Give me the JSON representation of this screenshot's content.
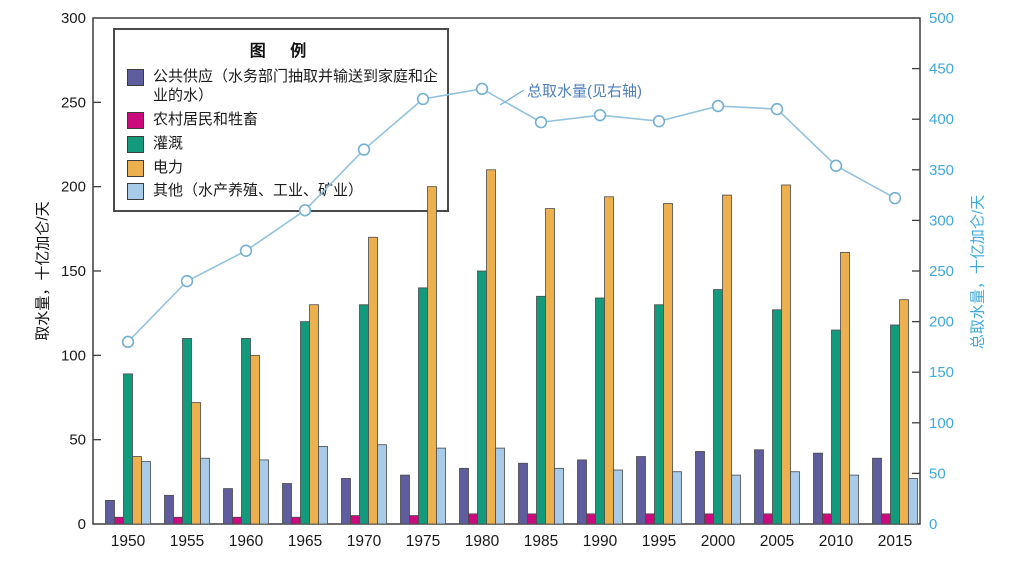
{
  "figure": {
    "left_axis_title": "取水量，十亿加仑/天",
    "right_axis_title": "总取水量，十亿加仑/天",
    "line_annotation": "总取水量(见右轴)",
    "legend_title": "图  例"
  },
  "chart_data": {
    "type": "bar",
    "title": "",
    "categories": [
      "1950",
      "1955",
      "1960",
      "1965",
      "1970",
      "1975",
      "1980",
      "1985",
      "1990",
      "1995",
      "2000",
      "2005",
      "2010",
      "2015"
    ],
    "series": [
      {
        "key": "public-supply",
        "name": "公共供应（水务部门抽取并输送到家庭和企业的水）",
        "color": "#5f5d9e",
        "values": [
          14,
          17,
          21,
          24,
          27,
          29,
          33,
          36,
          38,
          40,
          43,
          44,
          42,
          39
        ]
      },
      {
        "key": "rural-livestock",
        "name": "农村居民和牲畜",
        "color": "#cb0a7e",
        "values": [
          4,
          4,
          4,
          4,
          5,
          5,
          6,
          6,
          6,
          6,
          6,
          6,
          6,
          6
        ]
      },
      {
        "key": "irrigation",
        "name": "灌溉",
        "color": "#13997c",
        "values": [
          89,
          110,
          110,
          120,
          130,
          140,
          150,
          135,
          134,
          130,
          139,
          127,
          115,
          118
        ]
      },
      {
        "key": "thermoelectric-power",
        "name": "电力",
        "color": "#ecb04f",
        "values": [
          40,
          72,
          100,
          130,
          170,
          200,
          210,
          187,
          194,
          190,
          195,
          201,
          161,
          133
        ]
      },
      {
        "key": "other",
        "name": "其他（水产养殖、工业、矿业）",
        "color": "#a7cbe8",
        "values": [
          37,
          39,
          38,
          46,
          47,
          45,
          45,
          33,
          32,
          31,
          29,
          31,
          29,
          27
        ]
      }
    ],
    "line_series": {
      "key": "total-withdrawal",
      "name": "总取水量(见右轴)",
      "axis": "right",
      "color": "#93c2de",
      "marker": "open-circle",
      "values": [
        180,
        240,
        270,
        310,
        370,
        420,
        430,
        397,
        404,
        398,
        413,
        410,
        354,
        322
      ]
    },
    "left_axis": {
      "label": "取水量，十亿加仑/天",
      "min": 0,
      "max": 300,
      "step": 50,
      "color": "#1a1a1a"
    },
    "right_axis": {
      "label": "总取水量，十亿加仑/天",
      "min": 0,
      "max": 500,
      "step": 50,
      "color": "#3fa9dc"
    },
    "xlabel": "",
    "ylabel": "取水量，十亿加仑/天",
    "grid": false,
    "legend_position": "top-left"
  }
}
